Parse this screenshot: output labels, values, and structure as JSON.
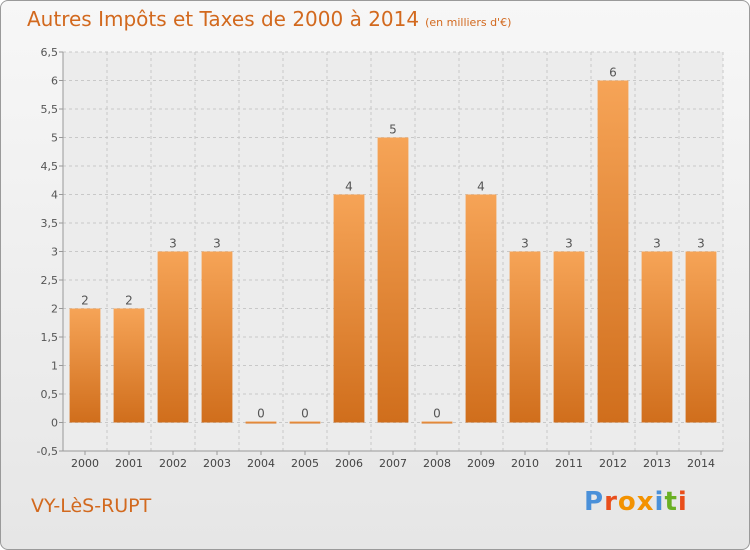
{
  "header": {
    "title": "Autres Impôts et Taxes de 2000 à 2014",
    "unit": "(en milliers d'€)"
  },
  "footer": {
    "location": "VY-LèS-RUPT",
    "logo": "Proxiti"
  },
  "colors": {
    "accent": "#d2691e",
    "bar_top": "#f6a457",
    "bar_bottom": "#d06e1c",
    "logo": [
      "#4a90d9",
      "#e94e1b",
      "#f39200",
      "#f39200",
      "#4a90d9",
      "#6ab023",
      "#e94e1b"
    ]
  },
  "chart_data": {
    "type": "bar",
    "categories": [
      "2000",
      "2001",
      "2002",
      "2003",
      "2004",
      "2005",
      "2006",
      "2007",
      "2008",
      "2009",
      "2010",
      "2011",
      "2012",
      "2013",
      "2014"
    ],
    "values": [
      2,
      2,
      3,
      3,
      0,
      0,
      4,
      5,
      0,
      4,
      3,
      3,
      6,
      3,
      3
    ],
    "ylim": [
      -0.5,
      6.5
    ],
    "yticks": [
      "-0,5",
      "0",
      "0,5",
      "1",
      "1,5",
      "2",
      "2,5",
      "3",
      "3,5",
      "4",
      "4,5",
      "5",
      "5,5",
      "6",
      "6,5"
    ],
    "ytick_values": [
      -0.5,
      0,
      0.5,
      1,
      1.5,
      2,
      2.5,
      3,
      3.5,
      4,
      4.5,
      5,
      5.5,
      6,
      6.5
    ],
    "grid": true
  }
}
